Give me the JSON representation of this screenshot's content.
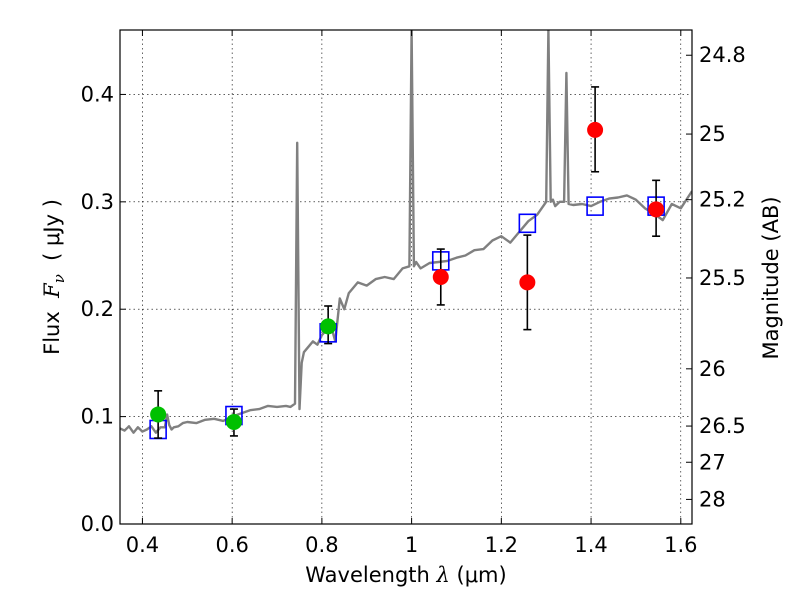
{
  "chart_data": {
    "type": "scatter",
    "xlabel_prefix": "Wavelength  ",
    "xlabel_lambda": "λ",
    "xlabel_suffix": " (μm)",
    "ylabel_prefix": "Flux  ",
    "ylabel_F": "F",
    "ylabel_nu": "ν",
    "ylabel_suffix": "  ( μJy )",
    "y2label": "Magnitude (AB)",
    "xlim": [
      0.35,
      1.625
    ],
    "ylim": [
      0.0,
      0.46
    ],
    "grid": true,
    "x_ticks": [
      {
        "value": 0.4,
        "label": "0.4"
      },
      {
        "value": 0.6,
        "label": "0.6"
      },
      {
        "value": 0.8,
        "label": "0.8"
      },
      {
        "value": 1.0,
        "label": "1"
      },
      {
        "value": 1.2,
        "label": "1.2"
      },
      {
        "value": 1.4,
        "label": "1.4"
      },
      {
        "value": 1.6,
        "label": "1.6"
      }
    ],
    "y_ticks": [
      {
        "value": 0.0,
        "label": "0.0"
      },
      {
        "value": 0.1,
        "label": "0.1"
      },
      {
        "value": 0.2,
        "label": "0.2"
      },
      {
        "value": 0.3,
        "label": "0.3"
      },
      {
        "value": 0.4,
        "label": "0.4"
      }
    ],
    "y2_ticks": [
      {
        "flux": 0.4365,
        "label": "24.8"
      },
      {
        "flux": 0.3631,
        "label": "25"
      },
      {
        "flux": 0.302,
        "label": "25.2"
      },
      {
        "flux": 0.2291,
        "label": "25.5"
      },
      {
        "flux": 0.1445,
        "label": "26"
      },
      {
        "flux": 0.0912,
        "label": "26.5"
      },
      {
        "flux": 0.0575,
        "label": "27"
      },
      {
        "flux": 0.0229,
        "label": "28"
      }
    ],
    "series": [
      {
        "name": "model spectrum",
        "kind": "line",
        "color": "#808080",
        "x": [
          0.35,
          0.36,
          0.37,
          0.38,
          0.39,
          0.4,
          0.41,
          0.42,
          0.43,
          0.44,
          0.45,
          0.455,
          0.46,
          0.465,
          0.47,
          0.48,
          0.49,
          0.5,
          0.52,
          0.54,
          0.56,
          0.58,
          0.6,
          0.62,
          0.64,
          0.66,
          0.68,
          0.7,
          0.72,
          0.73,
          0.74,
          0.745,
          0.75,
          0.755,
          0.76,
          0.77,
          0.78,
          0.79,
          0.8,
          0.82,
          0.83,
          0.84,
          0.85,
          0.86,
          0.88,
          0.9,
          0.92,
          0.94,
          0.96,
          0.98,
          0.995,
          1.0,
          1.005,
          1.01,
          1.02,
          1.04,
          1.06,
          1.08,
          1.1,
          1.12,
          1.14,
          1.16,
          1.18,
          1.2,
          1.22,
          1.24,
          1.26,
          1.28,
          1.3,
          1.305,
          1.31,
          1.315,
          1.32,
          1.33,
          1.34,
          1.345,
          1.35,
          1.36,
          1.38,
          1.4,
          1.42,
          1.44,
          1.46,
          1.48,
          1.5,
          1.52,
          1.54,
          1.56,
          1.58,
          1.6,
          1.625
        ],
        "y": [
          0.089,
          0.087,
          0.091,
          0.085,
          0.09,
          0.086,
          0.088,
          0.091,
          0.085,
          0.09,
          0.09,
          0.102,
          0.092,
          0.088,
          0.09,
          0.091,
          0.094,
          0.095,
          0.094,
          0.097,
          0.098,
          0.096,
          0.1,
          0.103,
          0.106,
          0.107,
          0.11,
          0.109,
          0.11,
          0.109,
          0.112,
          0.355,
          0.107,
          0.15,
          0.16,
          0.165,
          0.17,
          0.167,
          0.176,
          0.185,
          0.17,
          0.21,
          0.2,
          0.215,
          0.225,
          0.222,
          0.228,
          0.23,
          0.228,
          0.238,
          0.24,
          0.46,
          0.24,
          0.244,
          0.238,
          0.243,
          0.244,
          0.245,
          0.248,
          0.25,
          0.255,
          0.256,
          0.264,
          0.268,
          0.262,
          0.272,
          0.282,
          0.288,
          0.3,
          0.46,
          0.3,
          0.302,
          0.296,
          0.3,
          0.3,
          0.42,
          0.298,
          0.297,
          0.298,
          0.296,
          0.3,
          0.303,
          0.304,
          0.306,
          0.302,
          0.294,
          0.289,
          0.283,
          0.298,
          0.294,
          0.31
        ]
      },
      {
        "name": "model bandpass flux",
        "kind": "open-square",
        "color": "#0000ff",
        "x": [
          0.435,
          0.604,
          0.814,
          1.065,
          1.258,
          1.409,
          1.545
        ],
        "y": [
          0.088,
          0.101,
          0.178,
          0.245,
          0.28,
          0.296,
          0.296
        ]
      },
      {
        "name": "observed (green)",
        "kind": "point-errorbar",
        "color": "#00c000",
        "x": [
          0.435,
          0.604,
          0.814
        ],
        "y": [
          0.102,
          0.095,
          0.184
        ],
        "yerr_low": [
          0.08,
          0.082,
          0.168
        ],
        "yerr_high": [
          0.124,
          0.107,
          0.203
        ]
      },
      {
        "name": "observed (red)",
        "kind": "point-errorbar",
        "color": "#ff0000",
        "x": [
          1.065,
          1.258,
          1.409,
          1.545
        ],
        "y": [
          0.23,
          0.225,
          0.367,
          0.293
        ],
        "yerr_low": [
          0.204,
          0.181,
          0.328,
          0.268
        ],
        "yerr_high": [
          0.256,
          0.269,
          0.407,
          0.32
        ]
      }
    ]
  }
}
